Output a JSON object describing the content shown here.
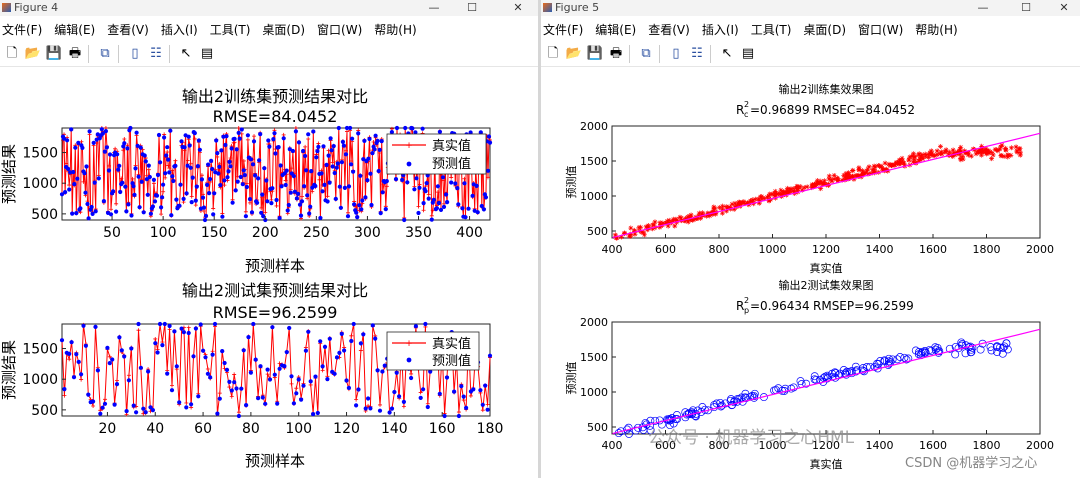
{
  "fig4": {
    "title": "Figure 4",
    "menu": [
      "文件(F)",
      "编辑(E)",
      "查看(V)",
      "插入(I)",
      "工具(T)",
      "桌面(D)",
      "窗口(W)",
      "帮助(H)"
    ],
    "train_plot": {
      "title": "输出2训练集预测结果对比",
      "subtitle": "RMSE=84.0452",
      "xlabel": "预测样本",
      "ylabel": "预测结果",
      "xticks": [
        50,
        100,
        150,
        200,
        250,
        300,
        350,
        400
      ],
      "yticks": [
        500,
        1000,
        1500
      ],
      "legend": [
        "真实值",
        "预测值"
      ]
    },
    "test_plot": {
      "title": "输出2测试集预测结果对比",
      "subtitle": "RMSE=96.2599",
      "xlabel": "预测样本",
      "ylabel": "预测结果",
      "xticks": [
        20,
        40,
        60,
        80,
        100,
        120,
        140,
        160,
        180
      ],
      "yticks": [
        500,
        1000,
        1500
      ],
      "legend": [
        "真实值",
        "预测值"
      ]
    }
  },
  "fig5": {
    "title": "Figure 5",
    "menu": [
      "文件(F)",
      "编辑(E)",
      "查看(V)",
      "插入(I)",
      "工具(T)",
      "桌面(D)",
      "窗口(W)",
      "帮助(H)"
    ],
    "train_plot": {
      "title": "输出2训练集效果图",
      "r2_sub": "c",
      "r2_value": "=0.96899",
      "rmse_text": "RMSEC=84.0452",
      "xlabel": "真实值",
      "ylabel": "预测值",
      "xticks": [
        400,
        600,
        800,
        1000,
        1200,
        1400,
        1600,
        1800,
        2000
      ],
      "yticks": [
        500,
        1000,
        1500,
        2000
      ]
    },
    "test_plot": {
      "title": "输出2测试集效果图",
      "r2_sub": "p",
      "r2_value": "=0.96434",
      "rmse_text": "RMSEP=96.2599",
      "xlabel": "真实值",
      "ylabel": "预测值",
      "xticks": [
        400,
        600,
        800,
        1000,
        1200,
        1400,
        1600,
        1800,
        2000
      ],
      "yticks": [
        500,
        1000,
        1500,
        2000
      ]
    }
  },
  "watermark": "公众号 · 机器学习之心HML",
  "csdn": "CSDN @机器学习之心",
  "colors": {
    "truth": "#ff0000",
    "pred": "#0000ff",
    "train_marker": "#ff0000",
    "test_marker": "#0000ff",
    "fit_line": "#ff00ff"
  },
  "chart_data": [
    {
      "type": "line",
      "title": "输出2训练集预测结果对比",
      "subtitle": "RMSE=84.0452",
      "xlabel": "预测样本",
      "ylabel": "预测结果",
      "xlim": [
        1,
        420
      ],
      "ylim": [
        400,
        1900
      ],
      "series": [
        {
          "name": "真实值"
        },
        {
          "name": "预测值"
        }
      ],
      "n_points": 420
    },
    {
      "type": "line",
      "title": "输出2测试集预测结果对比",
      "subtitle": "RMSE=96.2599",
      "xlabel": "预测样本",
      "ylabel": "预测结果",
      "xlim": [
        1,
        180
      ],
      "ylim": [
        400,
        1900
      ],
      "series": [
        {
          "name": "真实值"
        },
        {
          "name": "预测值"
        }
      ],
      "n_points": 180
    },
    {
      "type": "scatter",
      "title": "输出2训练集效果图",
      "xlabel": "真实值",
      "ylabel": "预测值",
      "xlim": [
        400,
        2000
      ],
      "ylim": [
        400,
        2000
      ],
      "r2": 0.96899,
      "rmse": 84.0452
    },
    {
      "type": "scatter",
      "title": "输出2测试集效果图",
      "xlabel": "真实值",
      "ylabel": "预测值",
      "xlim": [
        400,
        2000
      ],
      "ylim": [
        400,
        2000
      ],
      "r2": 0.96434,
      "rmse": 96.2599
    }
  ]
}
